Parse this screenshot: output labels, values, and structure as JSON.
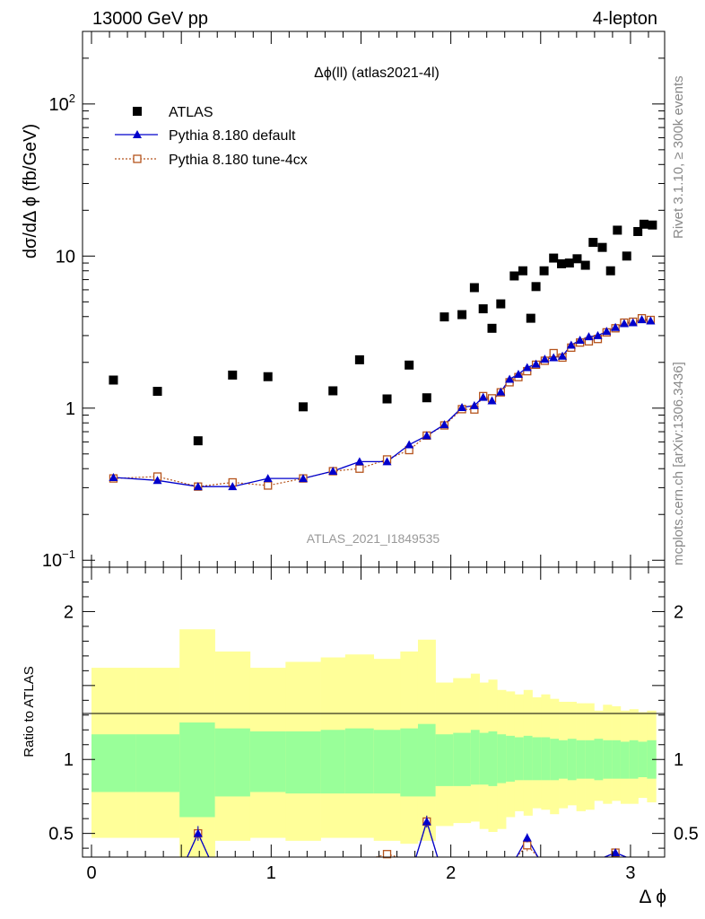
{
  "header": {
    "left": "13000 GeV pp",
    "right": "4-lepton",
    "watermark": "ATLAS_2021_I1849535",
    "side_top": "Rivet 3.1.10, ≥ 300k events",
    "side_bottom": "mcplots.cern.ch [arXiv:1306.3436]"
  },
  "colors": {
    "data": "#000000",
    "default": "#0000cc",
    "tune": "#b5541d",
    "band_inner": "#99ff99",
    "band_outer": "#ffff99"
  },
  "chart_data": [
    {
      "type": "scatter",
      "title": "Δϕ(ll) (atlas2021-4l)",
      "xlabel": "Δ ϕ",
      "ylabel": "dσ/dΔ ϕ (fb/GeV)",
      "ylog": true,
      "xlim": [
        -0.05,
        3.19
      ],
      "ylim": [
        0.09,
        300
      ],
      "y_ticks": [
        {
          "v": 0.1,
          "base": "10",
          "exp": "−1"
        },
        {
          "v": 1,
          "base": "1",
          "exp": ""
        },
        {
          "v": 10,
          "base": "10",
          "exp": ""
        },
        {
          "v": 100,
          "base": "10",
          "exp": "2"
        }
      ],
      "legend_position": "top-left",
      "series": [
        {
          "name": "ATLAS",
          "x": [
            0.122,
            0.367,
            0.593,
            0.785,
            0.982,
            1.178,
            1.344,
            1.492,
            1.645,
            1.768,
            1.866,
            1.964,
            2.062,
            2.131,
            2.18,
            2.229,
            2.278,
            2.353,
            2.401,
            2.445,
            2.474,
            2.519,
            2.572,
            2.616,
            2.66,
            2.703,
            2.749,
            2.792,
            2.843,
            2.889,
            2.927,
            2.979,
            3.041,
            3.075,
            3.122
          ],
          "y": [
            1.53,
            1.29,
            0.61,
            1.65,
            1.61,
            1.02,
            1.3,
            2.08,
            1.15,
            1.92,
            1.17,
            3.98,
            4.12,
            6.2,
            4.5,
            3.35,
            4.85,
            7.4,
            8.0,
            3.9,
            6.3,
            8.0,
            9.7,
            8.9,
            9.0,
            9.6,
            8.7,
            12.3,
            11.4,
            8.0,
            14.8,
            10.0,
            14.5,
            16.2,
            16.0
          ]
        },
        {
          "name": "Pythia 8.180 default",
          "x": [
            0.122,
            0.367,
            0.593,
            0.785,
            0.982,
            1.178,
            1.344,
            1.492,
            1.645,
            1.768,
            1.866,
            1.964,
            2.062,
            2.131,
            2.18,
            2.229,
            2.278,
            2.327,
            2.376,
            2.425,
            2.474,
            2.523,
            2.572,
            2.621,
            2.67,
            2.719,
            2.768,
            2.818,
            2.867,
            2.916,
            2.965,
            3.014,
            3.063,
            3.112
          ],
          "y": [
            0.35,
            0.335,
            0.305,
            0.305,
            0.345,
            0.345,
            0.385,
            0.445,
            0.445,
            0.575,
            0.66,
            0.78,
            1.01,
            1.04,
            1.18,
            1.12,
            1.28,
            1.55,
            1.67,
            1.85,
            1.95,
            2.1,
            2.15,
            2.2,
            2.6,
            2.8,
            2.95,
            3.0,
            3.2,
            3.4,
            3.6,
            3.65,
            3.82,
            3.75
          ]
        },
        {
          "name": "Pythia 8.180 tune-4cx",
          "x": [
            0.122,
            0.367,
            0.593,
            0.785,
            0.982,
            1.178,
            1.344,
            1.492,
            1.645,
            1.768,
            1.866,
            1.964,
            2.062,
            2.131,
            2.18,
            2.229,
            2.278,
            2.327,
            2.376,
            2.425,
            2.474,
            2.523,
            2.572,
            2.621,
            2.67,
            2.719,
            2.768,
            2.818,
            2.867,
            2.916,
            2.965,
            3.014,
            3.063,
            3.112
          ],
          "y": [
            0.345,
            0.355,
            0.305,
            0.325,
            0.31,
            0.345,
            0.385,
            0.4,
            0.46,
            0.53,
            0.66,
            0.77,
            0.985,
            0.98,
            1.2,
            1.16,
            1.27,
            1.48,
            1.6,
            1.75,
            1.93,
            2.05,
            2.3,
            2.15,
            2.5,
            2.7,
            2.75,
            2.85,
            3.15,
            3.35,
            3.65,
            3.7,
            3.9,
            3.8
          ]
        }
      ]
    },
    {
      "type": "scatter",
      "ylabel": "Ratio to ATLAS",
      "xlabel": "Δ ϕ",
      "xlim": [
        -0.05,
        3.19
      ],
      "ylim": [
        0.34,
        2.3
      ],
      "x_ticks": [
        0,
        1,
        2,
        3
      ],
      "y_ticks": [
        0.5,
        1,
        2
      ],
      "band_edges": [
        0.0,
        0.245,
        0.49,
        0.687,
        0.883,
        1.08,
        1.276,
        1.412,
        1.571,
        1.719,
        1.817,
        1.915,
        2.013,
        2.111,
        2.16,
        2.209,
        2.258,
        2.307,
        2.356,
        2.405,
        2.454,
        2.503,
        2.552,
        2.601,
        2.65,
        2.699,
        2.749,
        2.798,
        2.847,
        2.896,
        2.945,
        2.994,
        3.043,
        3.092,
        3.142
      ],
      "band_inner": [
        [
          0.78,
          1.17
        ],
        [
          0.78,
          1.17
        ],
        [
          0.61,
          1.25
        ],
        [
          0.75,
          1.21
        ],
        [
          0.78,
          1.19
        ],
        [
          0.77,
          1.19
        ],
        [
          0.77,
          1.2
        ],
        [
          0.77,
          1.21
        ],
        [
          0.77,
          1.2
        ],
        [
          0.75,
          1.21
        ],
        [
          0.75,
          1.24
        ],
        [
          0.82,
          1.17
        ],
        [
          0.82,
          1.18
        ],
        [
          0.83,
          1.2
        ],
        [
          0.83,
          1.18
        ],
        [
          0.82,
          1.19
        ],
        [
          0.84,
          1.17
        ],
        [
          0.85,
          1.16
        ],
        [
          0.86,
          1.15
        ],
        [
          0.86,
          1.16
        ],
        [
          0.86,
          1.15
        ],
        [
          0.86,
          1.15
        ],
        [
          0.86,
          1.14
        ],
        [
          0.87,
          1.13
        ],
        [
          0.86,
          1.14
        ],
        [
          0.87,
          1.13
        ],
        [
          0.87,
          1.13
        ],
        [
          0.86,
          1.14
        ],
        [
          0.87,
          1.13
        ],
        [
          0.87,
          1.13
        ],
        [
          0.87,
          1.12
        ],
        [
          0.87,
          1.13
        ],
        [
          0.88,
          1.12
        ],
        [
          0.87,
          1.13
        ]
      ],
      "band_outer": [
        [
          0.47,
          1.62
        ],
        [
          0.47,
          1.62
        ],
        [
          0.34,
          1.88
        ],
        [
          0.45,
          1.73
        ],
        [
          0.47,
          1.62
        ],
        [
          0.45,
          1.66
        ],
        [
          0.47,
          1.69
        ],
        [
          0.47,
          1.71
        ],
        [
          0.45,
          1.68
        ],
        [
          0.43,
          1.73
        ],
        [
          0.45,
          1.81
        ],
        [
          0.55,
          1.52
        ],
        [
          0.57,
          1.55
        ],
        [
          0.58,
          1.58
        ],
        [
          0.53,
          1.52
        ],
        [
          0.51,
          1.54
        ],
        [
          0.53,
          1.47
        ],
        [
          0.61,
          1.46
        ],
        [
          0.65,
          1.44
        ],
        [
          0.62,
          1.47
        ],
        [
          0.67,
          1.42
        ],
        [
          0.66,
          1.44
        ],
        [
          0.63,
          1.41
        ],
        [
          0.67,
          1.39
        ],
        [
          0.69,
          1.39
        ],
        [
          0.65,
          1.38
        ],
        [
          0.66,
          1.38
        ],
        [
          0.72,
          1.33
        ],
        [
          0.7,
          1.37
        ],
        [
          0.72,
          1.36
        ],
        [
          0.7,
          1.33
        ],
        [
          0.7,
          1.34
        ],
        [
          0.74,
          1.32
        ],
        [
          0.71,
          1.33
        ]
      ],
      "series": [
        {
          "name": "Pythia 8.180 default",
          "x": [
            0.593,
            1.866,
            2.425,
            2.916
          ],
          "y": [
            0.5,
            0.58,
            0.47,
            0.37
          ],
          "err": [
            0.05,
            0.04,
            0.03,
            0.02
          ]
        },
        {
          "name": "Pythia 8.180 tune-4cx",
          "x": [
            0.593,
            1.645,
            1.866,
            2.425,
            2.916
          ],
          "y": [
            0.5,
            0.36,
            0.58,
            0.42,
            0.37
          ],
          "err": [
            0.04,
            0.02,
            0.04,
            0.04,
            0.02
          ]
        }
      ]
    }
  ]
}
